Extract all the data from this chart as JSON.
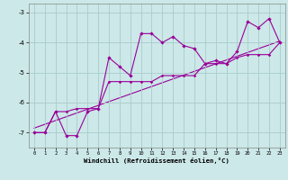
{
  "xlabel": "Windchill (Refroidissement éolien,°C)",
  "background_color": "#cce8e8",
  "grid_color": "#aacccc",
  "line_color": "#990099",
  "xlim": [
    -0.5,
    23.5
  ],
  "ylim": [
    -7.5,
    -2.7
  ],
  "xticks": [
    0,
    1,
    2,
    3,
    4,
    5,
    6,
    7,
    8,
    9,
    10,
    11,
    12,
    13,
    14,
    15,
    16,
    17,
    18,
    19,
    20,
    21,
    22,
    23
  ],
  "yticks": [
    -7,
    -6,
    -5,
    -4,
    -3
  ],
  "series1_x": [
    0,
    1,
    2,
    3,
    4,
    5,
    6,
    7,
    8,
    9,
    10,
    11,
    12,
    13,
    14,
    15,
    16,
    17,
    18,
    19,
    20,
    21,
    22,
    23
  ],
  "series1_y": [
    -7.0,
    -7.0,
    -6.3,
    -7.1,
    -7.1,
    -6.3,
    -6.2,
    -4.5,
    -4.8,
    -5.1,
    -3.7,
    -3.7,
    -4.0,
    -3.8,
    -4.1,
    -4.2,
    -4.7,
    -4.6,
    -4.7,
    -4.3,
    -3.3,
    -3.5,
    -3.2,
    -4.0
  ],
  "series2_x": [
    0,
    1,
    2,
    3,
    4,
    5,
    6,
    7,
    8,
    9,
    10,
    11,
    12,
    13,
    14,
    15,
    16,
    17,
    18,
    19,
    20,
    21,
    22,
    23
  ],
  "series2_y": [
    -7.0,
    -7.0,
    -6.3,
    -6.3,
    -6.2,
    -6.2,
    -6.2,
    -5.3,
    -5.3,
    -5.3,
    -5.3,
    -5.3,
    -5.1,
    -5.1,
    -5.1,
    -5.1,
    -4.7,
    -4.7,
    -4.7,
    -4.5,
    -4.4,
    -4.4,
    -4.4,
    -4.0
  ],
  "series3_x": [
    0,
    23
  ],
  "series3_y": [
    -6.85,
    -3.95
  ]
}
